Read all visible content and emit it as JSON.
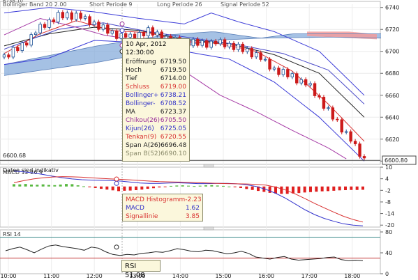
{
  "chart_data": [
    {
      "type": "line",
      "panel": "price",
      "header_labels": [
        "Bollinger Band 20 2.00",
        "Short Periode 9",
        "Long Periode 26",
        "Signal Periode 52"
      ],
      "top_left_value": "6738.10",
      "y_ticks": [
        6740,
        6720,
        6700,
        6680,
        6660,
        6640,
        6620,
        6600
      ],
      "ylim": [
        6597,
        6743
      ],
      "last_price_label": "6600.80",
      "reference_label": "6600.68",
      "note": "Daten sind indikativ",
      "colors": {
        "up": "#1a4f94",
        "down": "#cc1a1a",
        "upper_band": "#3b3bd8",
        "lower_band": "#3b3bd8",
        "ma": "#222222",
        "chikou": "#a63ba6",
        "kijun": "#3b3bd8",
        "tenkan": "#d83030",
        "cloud_bull": "#7fa6d9",
        "cloud_bear": "#f29b9b"
      }
    },
    {
      "type": "bar",
      "panel": "macd",
      "label": "MACD 12 26 9",
      "y_ticks": [
        "10",
        "4",
        "-2",
        "-8",
        "-14",
        "-20"
      ],
      "ylim": [
        -21,
        10
      ],
      "histogram": [
        1.2,
        1.1,
        1.3,
        1.0,
        0.9,
        1.1,
        0.8,
        0.7,
        1.0,
        1.3,
        1.2,
        0.6,
        0.1,
        -0.4,
        -0.8,
        -1.2,
        -1.6,
        -2.0,
        -2.4,
        -2.2,
        -2.1,
        -1.9,
        -1.6,
        -1.2,
        -0.9,
        -0.5,
        -0.1,
        0.3,
        0.5,
        0.6,
        0.4,
        0.2,
        0.4,
        0.6,
        0.7,
        0.5,
        0.3,
        0.0,
        -0.4,
        -0.8,
        -1.3,
        -1.8,
        -2.3,
        -2.8,
        -3.3,
        -3.6,
        -3.8,
        -3.8,
        -3.6,
        -3.4,
        -3.1,
        -2.9,
        -2.7,
        -2.5,
        -2.4,
        -2.2,
        -2.0,
        -1.9,
        -1.8,
        -1.8,
        -1.7
      ],
      "macd_line": [
        8.0,
        7.6,
        7.0,
        6.2,
        5.3,
        4.5,
        3.9,
        3.5,
        3.3,
        3.2,
        3.1,
        2.8,
        2.3,
        1.8,
        1.6,
        1.6,
        1.8,
        1.9,
        1.7,
        1.5,
        1.5,
        1.6,
        1.6,
        1.4,
        0.9,
        0.0,
        -1.5,
        -3.5,
        -6.0,
        -9.0,
        -12.0,
        -14.5,
        -16.5,
        -18.0,
        -19.3,
        -20.0,
        -20.4
      ],
      "signal_line": [
        2.0,
        3.0,
        3.9,
        4.5,
        4.9,
        5.1,
        5.0,
        4.8,
        4.5,
        4.2,
        3.9,
        3.7,
        3.4,
        3.1,
        2.8,
        2.5,
        2.4,
        2.3,
        2.2,
        2.0,
        1.8,
        1.6,
        1.5,
        1.4,
        1.3,
        1.1,
        0.7,
        -0.3,
        -1.8,
        -3.8,
        -6.2,
        -8.7,
        -11.0,
        -13.3,
        -15.4,
        -17.1,
        -18.4
      ]
    },
    {
      "type": "line",
      "panel": "rsi",
      "label": "RSI 14",
      "y_ticks": [
        "80",
        "40",
        "0"
      ],
      "ylim": [
        0,
        84
      ],
      "upper_line": 70,
      "lower_line": 30,
      "rsi": [
        44,
        48,
        51,
        46,
        40,
        47,
        53,
        55,
        52,
        50,
        48,
        45,
        51,
        49,
        42,
        37,
        35,
        37,
        36,
        39,
        40,
        42,
        41,
        44,
        48,
        46,
        43,
        42,
        45,
        44,
        41,
        38,
        40,
        43,
        39,
        32,
        30,
        28,
        31,
        33,
        28,
        26,
        27,
        28,
        29,
        31,
        32,
        27,
        25,
        26,
        25
      ]
    }
  ],
  "x_ticks": [
    "10:00",
    "11:00",
    "12:00",
    "13:00",
    "14:00",
    "15:00",
    "16:00",
    "17:00",
    "18:00"
  ],
  "tooltip_price": {
    "title": "10 Apr, 2012 12:30:00",
    "rows": [
      {
        "label": "Eröffnung",
        "value": "6719.50",
        "color": "#222222"
      },
      {
        "label": "Hoch",
        "value": "6719.50",
        "color": "#222222"
      },
      {
        "label": "Tief",
        "value": "6714.00",
        "color": "#222222"
      },
      {
        "label": "Schluss",
        "value": "6719.00",
        "color": "#d83030"
      },
      {
        "label": "Bollinger+",
        "value": "6738.21",
        "color": "#3030c8"
      },
      {
        "label": "Bollinger-",
        "value": "6708.52",
        "color": "#3030c8"
      },
      {
        "label": "MA",
        "value": "6723.37",
        "color": "#222222"
      },
      {
        "label": "Chikou(26)",
        "value": "6705.50",
        "color": "#9a2f9a"
      },
      {
        "label": "Kijun(26)",
        "value": "6725.05",
        "color": "#3030c8"
      },
      {
        "label": "Tenkan(9)",
        "value": "6720.55",
        "color": "#d83030"
      },
      {
        "label": "Span A(26)",
        "value": "6696.48",
        "color": "#222222"
      },
      {
        "label": "Span B(52)",
        "value": "6690.10",
        "color": "#8a8a6a"
      }
    ]
  },
  "tooltip_macd": {
    "rows": [
      {
        "label": "MACD Histogramm",
        "value": "-2.23",
        "color": "#d83030"
      },
      {
        "label": "MACD",
        "value": "1.62",
        "color": "#3030c8"
      },
      {
        "label": "Signallinie",
        "value": "3.85",
        "color": "#d83030"
      }
    ]
  },
  "tooltip_rsi": {
    "label": "RSI",
    "value": "51.08"
  }
}
